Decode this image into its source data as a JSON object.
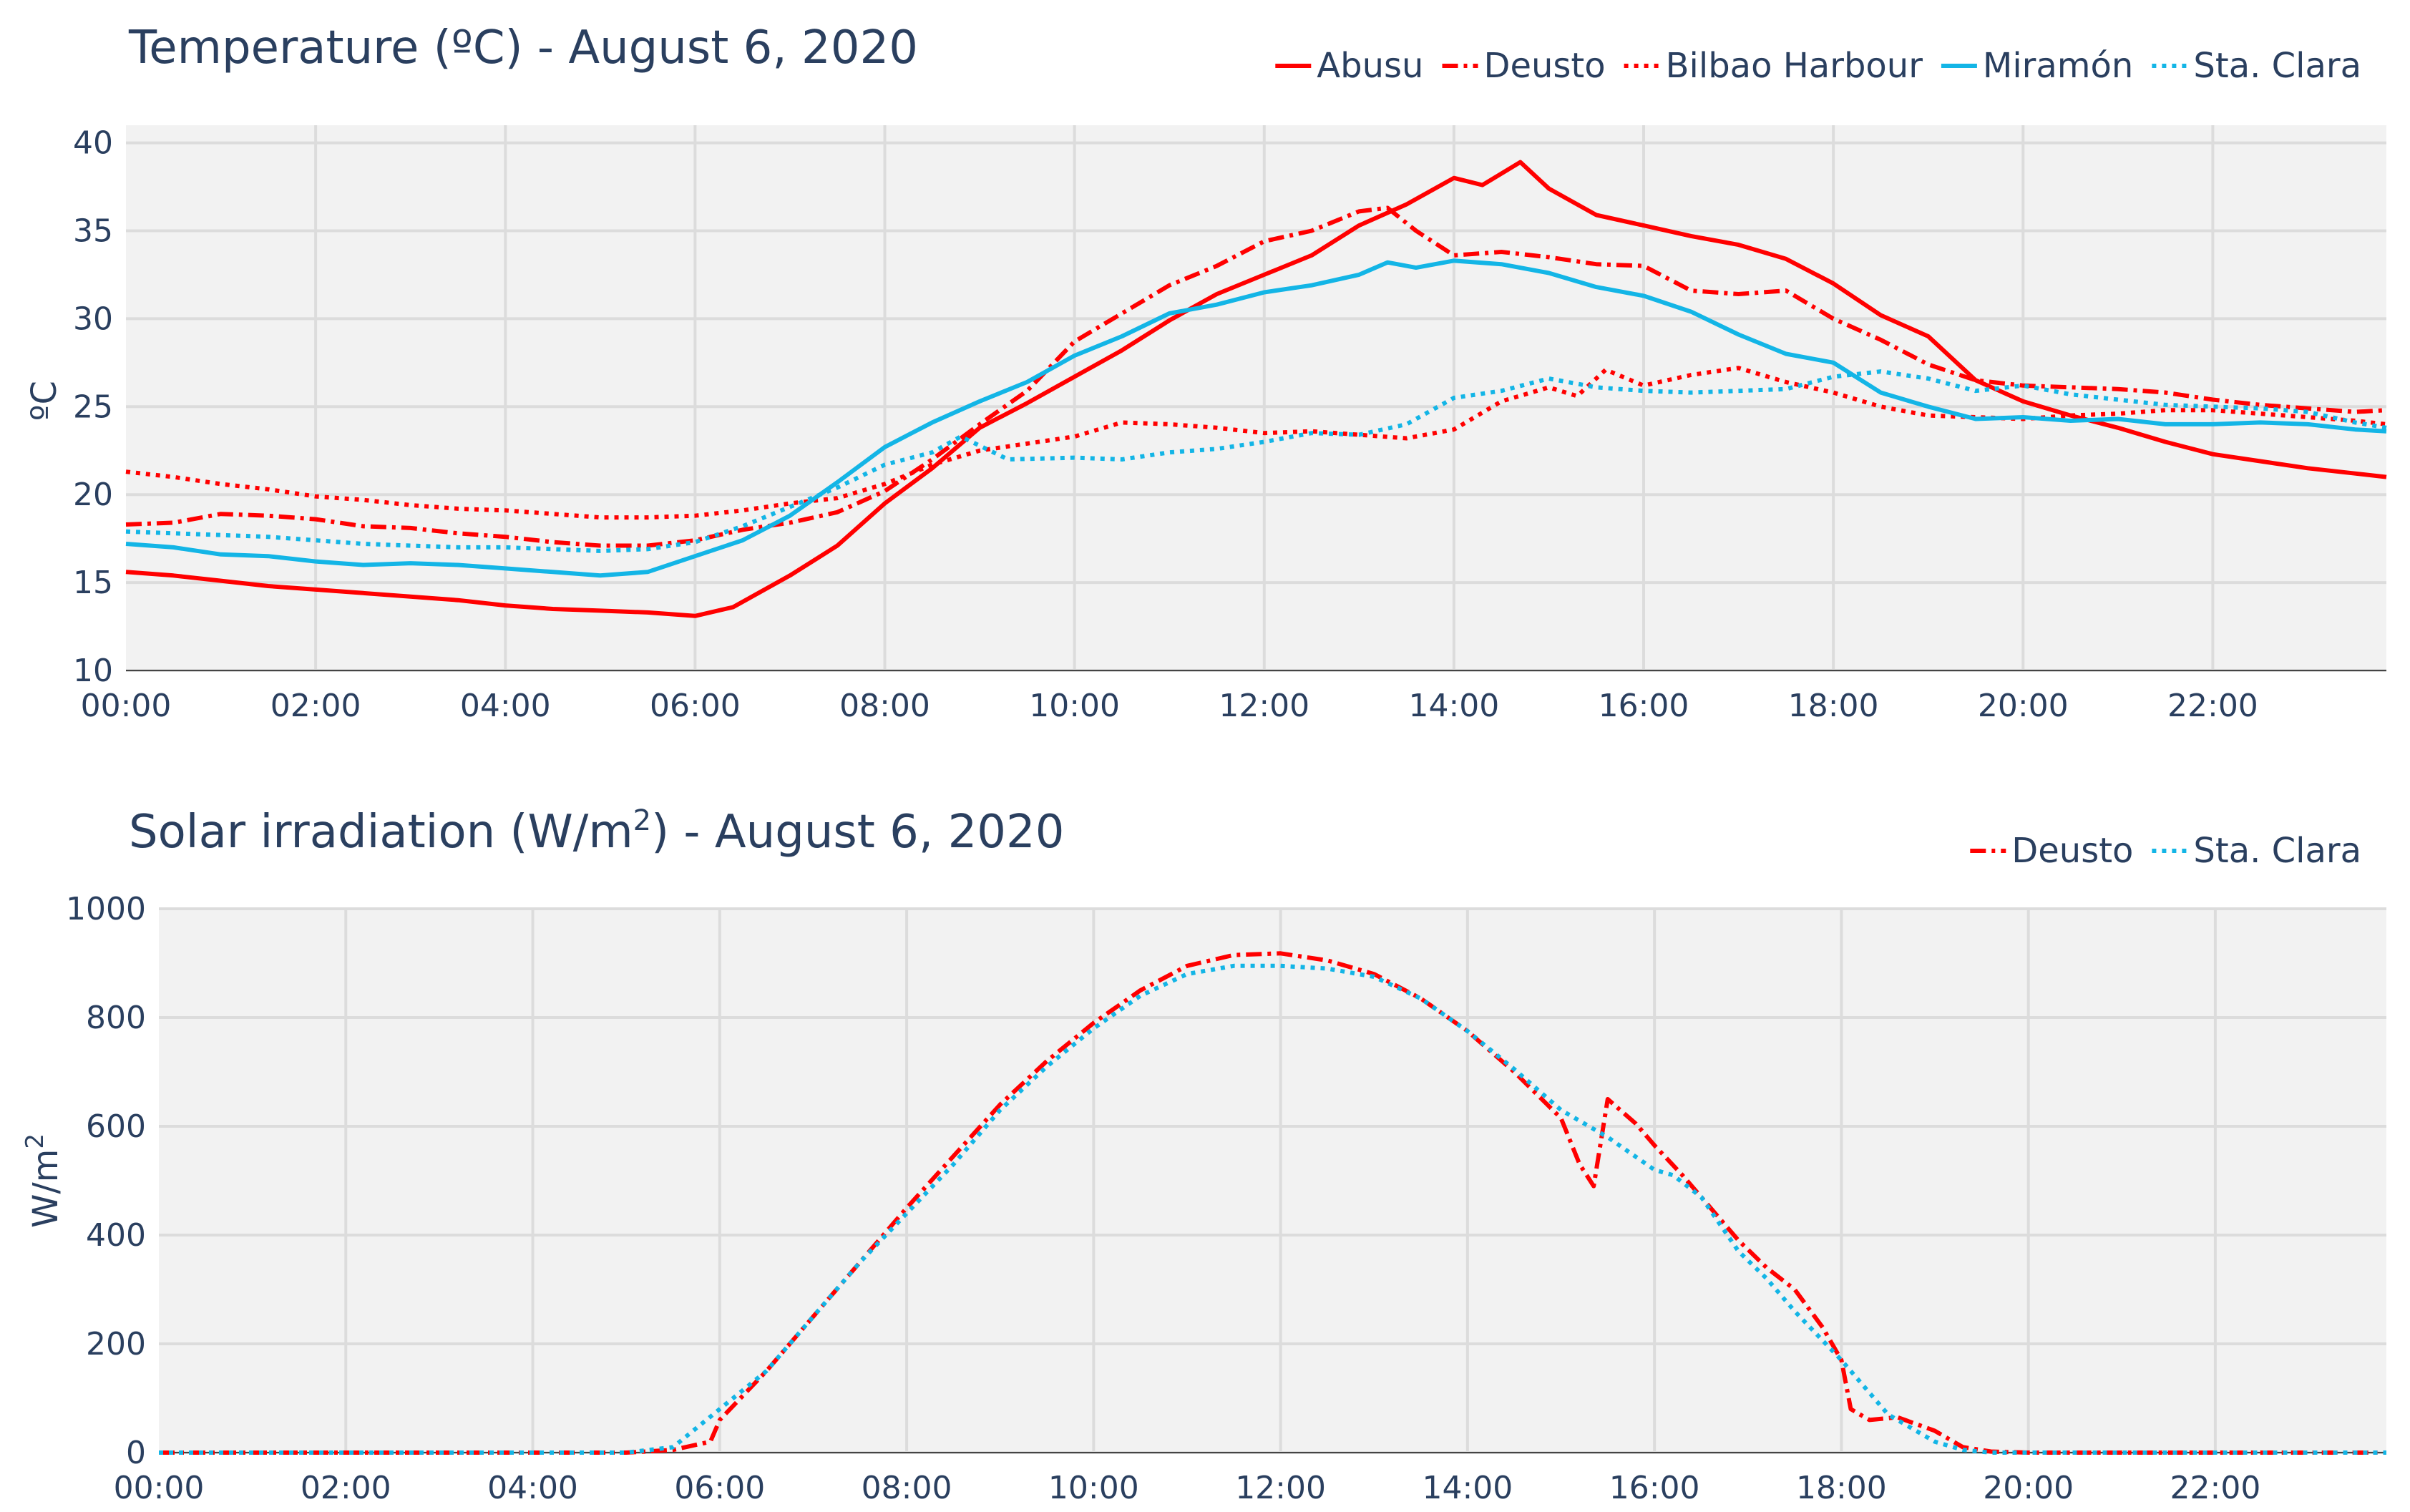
{
  "colors": {
    "red": "#ff0000",
    "blue": "#13b5e6",
    "text": "#2a3f5f",
    "plot_bg": "#f2f2f2",
    "grid": "#dcdcdc"
  },
  "chart_data": [
    {
      "type": "line",
      "title": "Temperature (ºC) - August 6, 2020",
      "xlabel": "",
      "ylabel": "ºC",
      "xlim": [
        0,
        23.83
      ],
      "ylim": [
        10,
        41
      ],
      "x_ticks": [
        0,
        2,
        4,
        6,
        8,
        10,
        12,
        14,
        16,
        18,
        20,
        22
      ],
      "x_tick_labels": [
        "00:00",
        "02:00",
        "04:00",
        "06:00",
        "08:00",
        "10:00",
        "12:00",
        "14:00",
        "16:00",
        "18:00",
        "20:00",
        "22:00"
      ],
      "y_ticks": [
        10,
        15,
        20,
        25,
        30,
        35,
        40
      ],
      "grid": true,
      "legend_position": "top-right",
      "series": [
        {
          "name": "Abusu",
          "color": "#ff0000",
          "dash": "solid",
          "x": [
            0,
            0.5,
            1,
            1.5,
            2,
            2.5,
            3,
            3.5,
            4,
            4.5,
            5,
            5.5,
            6,
            6.4,
            7,
            7.5,
            8,
            8.5,
            9,
            9.5,
            10,
            10.5,
            11,
            11.5,
            12,
            12.5,
            13,
            13.5,
            14,
            14.3,
            14.7,
            15,
            15.5,
            16,
            16.5,
            17,
            17.5,
            18,
            18.5,
            19,
            19.5,
            20,
            20.5,
            21,
            21.5,
            22,
            22.5,
            23,
            23.5,
            23.83
          ],
          "y": [
            15.6,
            15.4,
            15.1,
            14.8,
            14.6,
            14.4,
            14.2,
            14.0,
            13.7,
            13.5,
            13.4,
            13.3,
            13.1,
            13.6,
            15.4,
            17.1,
            19.5,
            21.5,
            23.8,
            25.2,
            26.7,
            28.2,
            29.9,
            31.4,
            32.5,
            33.6,
            35.3,
            36.5,
            38.0,
            37.6,
            38.9,
            37.4,
            35.9,
            35.3,
            34.7,
            34.2,
            33.4,
            32.0,
            30.2,
            29.0,
            26.5,
            25.3,
            24.5,
            23.8,
            23.0,
            22.3,
            21.9,
            21.5,
            21.2,
            21.0
          ]
        },
        {
          "name": "Deusto",
          "color": "#ff0000",
          "dash": "dashdot",
          "x": [
            0,
            0.5,
            1,
            1.5,
            2,
            2.5,
            3,
            3.5,
            4,
            4.5,
            5,
            5.5,
            6,
            6.5,
            7,
            7.5,
            8,
            8.5,
            9,
            9.5,
            10,
            10.5,
            11,
            11.5,
            12,
            12.5,
            13,
            13.3,
            13.6,
            14,
            14.5,
            15,
            15.5,
            16,
            16.5,
            17,
            17.5,
            18,
            18.5,
            19,
            19.5,
            20,
            20.5,
            21,
            21.5,
            22,
            22.5,
            23,
            23.5,
            23.83
          ],
          "y": [
            18.3,
            18.4,
            18.9,
            18.8,
            18.6,
            18.2,
            18.1,
            17.8,
            17.6,
            17.3,
            17.1,
            17.1,
            17.4,
            18.0,
            18.4,
            19.0,
            20.2,
            22.0,
            24.0,
            25.9,
            28.7,
            30.3,
            31.9,
            33.0,
            34.4,
            35.0,
            36.1,
            36.3,
            35.0,
            33.6,
            33.8,
            33.5,
            33.1,
            33.0,
            31.6,
            31.4,
            31.6,
            30.0,
            28.8,
            27.4,
            26.5,
            26.2,
            26.1,
            26.0,
            25.8,
            25.4,
            25.1,
            24.9,
            24.7,
            24.8
          ]
        },
        {
          "name": "Bilbao Harbour",
          "color": "#ff0000",
          "dash": "dot",
          "x": [
            0,
            0.5,
            1,
            1.5,
            2,
            2.5,
            3,
            3.5,
            4,
            4.5,
            5,
            5.5,
            6,
            6.5,
            7,
            7.5,
            8,
            8.5,
            9,
            9.5,
            10,
            10.5,
            11,
            11.5,
            12,
            12.5,
            13,
            13.5,
            14,
            14.5,
            15,
            15.3,
            15.6,
            16,
            16.5,
            17,
            17.5,
            18,
            18.5,
            19,
            19.5,
            20,
            20.5,
            21,
            21.5,
            22,
            22.5,
            23,
            23.5,
            23.83
          ],
          "y": [
            21.3,
            21.0,
            20.6,
            20.3,
            19.9,
            19.7,
            19.4,
            19.2,
            19.1,
            18.9,
            18.7,
            18.7,
            18.8,
            19.1,
            19.5,
            19.8,
            20.6,
            21.7,
            22.5,
            22.9,
            23.3,
            24.1,
            24.0,
            23.8,
            23.5,
            23.6,
            23.4,
            23.2,
            23.7,
            25.3,
            26.1,
            25.6,
            27.1,
            26.2,
            26.8,
            27.2,
            26.4,
            25.8,
            25.0,
            24.5,
            24.4,
            24.3,
            24.5,
            24.6,
            24.8,
            24.8,
            24.6,
            24.4,
            24.2,
            24.0
          ]
        },
        {
          "name": "Miramón",
          "color": "#13b5e6",
          "dash": "solid",
          "x": [
            0,
            0.5,
            1,
            1.5,
            2,
            2.5,
            3,
            3.5,
            4,
            4.5,
            5,
            5.5,
            6,
            6.5,
            7,
            7.5,
            8,
            8.5,
            9,
            9.5,
            10,
            10.5,
            11,
            11.5,
            12,
            12.5,
            13,
            13.3,
            13.6,
            14,
            14.5,
            15,
            15.5,
            16,
            16.5,
            17,
            17.5,
            18,
            18.5,
            19,
            19.5,
            20,
            20.5,
            21,
            21.5,
            22,
            22.5,
            23,
            23.5,
            23.83
          ],
          "y": [
            17.2,
            17.0,
            16.6,
            16.5,
            16.2,
            16.0,
            16.1,
            16.0,
            15.8,
            15.6,
            15.4,
            15.6,
            16.5,
            17.4,
            18.8,
            20.7,
            22.7,
            24.1,
            25.3,
            26.4,
            27.9,
            29.0,
            30.3,
            30.8,
            31.5,
            31.9,
            32.5,
            33.2,
            32.9,
            33.3,
            33.1,
            32.6,
            31.8,
            31.3,
            30.4,
            29.1,
            28.0,
            27.5,
            25.8,
            25.0,
            24.3,
            24.4,
            24.2,
            24.3,
            24.0,
            24.0,
            24.1,
            24.0,
            23.7,
            23.6
          ]
        },
        {
          "name": "Sta. Clara",
          "color": "#13b5e6",
          "dash": "dot",
          "x": [
            0,
            0.5,
            1,
            1.5,
            2,
            2.5,
            3,
            3.5,
            4,
            4.5,
            5,
            5.5,
            6,
            6.5,
            7,
            7.5,
            8,
            8.5,
            8.8,
            9.3,
            10,
            10.5,
            11,
            11.5,
            12,
            12.5,
            13,
            13.5,
            14,
            14.5,
            15,
            15.5,
            16,
            16.5,
            17,
            17.5,
            18,
            18.5,
            19,
            19.5,
            20,
            20.5,
            21,
            21.5,
            22,
            22.5,
            23,
            23.5,
            23.83
          ],
          "y": [
            17.9,
            17.8,
            17.7,
            17.6,
            17.4,
            17.2,
            17.1,
            17.0,
            17.0,
            16.9,
            16.8,
            16.9,
            17.3,
            18.2,
            19.3,
            20.4,
            21.7,
            22.4,
            23.3,
            22.0,
            22.1,
            22.0,
            22.4,
            22.6,
            23.0,
            23.5,
            23.4,
            24.0,
            25.5,
            25.9,
            26.6,
            26.1,
            25.9,
            25.8,
            25.9,
            26.0,
            26.7,
            27.0,
            26.6,
            25.9,
            26.2,
            25.7,
            25.4,
            25.1,
            25.0,
            24.9,
            24.7,
            24.1,
            23.8
          ]
        }
      ]
    },
    {
      "type": "line",
      "title": "Solar irradiation (W/m2) - August 6, 2020",
      "title_main": "Solar irradiation (W/m",
      "title_sup": "2",
      "title_tail": ") - August 6, 2020",
      "xlabel": "",
      "ylabel": "W/m2",
      "ylabel_main": "W/m",
      "ylabel_sup": "2",
      "xlim": [
        0,
        23.83
      ],
      "ylim": [
        0,
        1000
      ],
      "x_ticks": [
        0,
        2,
        4,
        6,
        8,
        10,
        12,
        14,
        16,
        18,
        20,
        22
      ],
      "x_tick_labels": [
        "00:00",
        "02:00",
        "04:00",
        "06:00",
        "08:00",
        "10:00",
        "12:00",
        "14:00",
        "16:00",
        "18:00",
        "20:00",
        "22:00"
      ],
      "y_ticks": [
        0,
        200,
        400,
        600,
        800,
        1000
      ],
      "grid": true,
      "legend_position": "top-right",
      "series": [
        {
          "name": "Deusto",
          "color": "#ff0000",
          "dash": "dashdot",
          "x": [
            0,
            1,
            2,
            3,
            4,
            5,
            5.5,
            5.9,
            6.0,
            6.5,
            7,
            7.5,
            8,
            8.5,
            9,
            9.5,
            10,
            10.5,
            11,
            11.5,
            12,
            12.5,
            13,
            13.5,
            14,
            14.5,
            15,
            15.2,
            15.35,
            15.5,
            15.8,
            16,
            16.3,
            16.6,
            16.9,
            17.2,
            17.5,
            17.8,
            18,
            18.1,
            18.3,
            18.6,
            19.0,
            19.3,
            19.6,
            20,
            21,
            22,
            23,
            23.83
          ],
          "y": [
            0,
            0,
            0,
            0,
            0,
            0,
            5,
            20,
            60,
            150,
            250,
            350,
            450,
            545,
            640,
            720,
            790,
            850,
            895,
            915,
            918,
            905,
            880,
            835,
            775,
            700,
            615,
            530,
            490,
            650,
            605,
            565,
            510,
            450,
            390,
            340,
            300,
            230,
            170,
            80,
            60,
            65,
            40,
            10,
            2,
            0,
            0,
            0,
            0,
            0
          ]
        },
        {
          "name": "Sta. Clara",
          "color": "#13b5e6",
          "dash": "dot",
          "x": [
            0,
            1,
            2,
            3,
            4,
            5,
            5.5,
            6.0,
            6.5,
            7,
            7.5,
            8,
            8.5,
            9,
            9.5,
            10,
            10.5,
            11,
            11.5,
            12,
            12.5,
            13,
            13.5,
            14,
            14.5,
            15,
            15.5,
            16,
            16.2,
            16.5,
            16.9,
            17.2,
            17.5,
            18,
            18.5,
            19,
            19.3,
            19.6,
            20,
            21,
            22,
            23,
            23.83
          ],
          "y": [
            0,
            0,
            0,
            0,
            0,
            0,
            10,
            80,
            150,
            250,
            350,
            440,
            530,
            630,
            710,
            780,
            840,
            880,
            895,
            895,
            890,
            875,
            835,
            775,
            705,
            630,
            580,
            520,
            510,
            470,
            370,
            320,
            260,
            170,
            70,
            20,
            5,
            0,
            0,
            0,
            0,
            0,
            0
          ]
        }
      ]
    }
  ]
}
